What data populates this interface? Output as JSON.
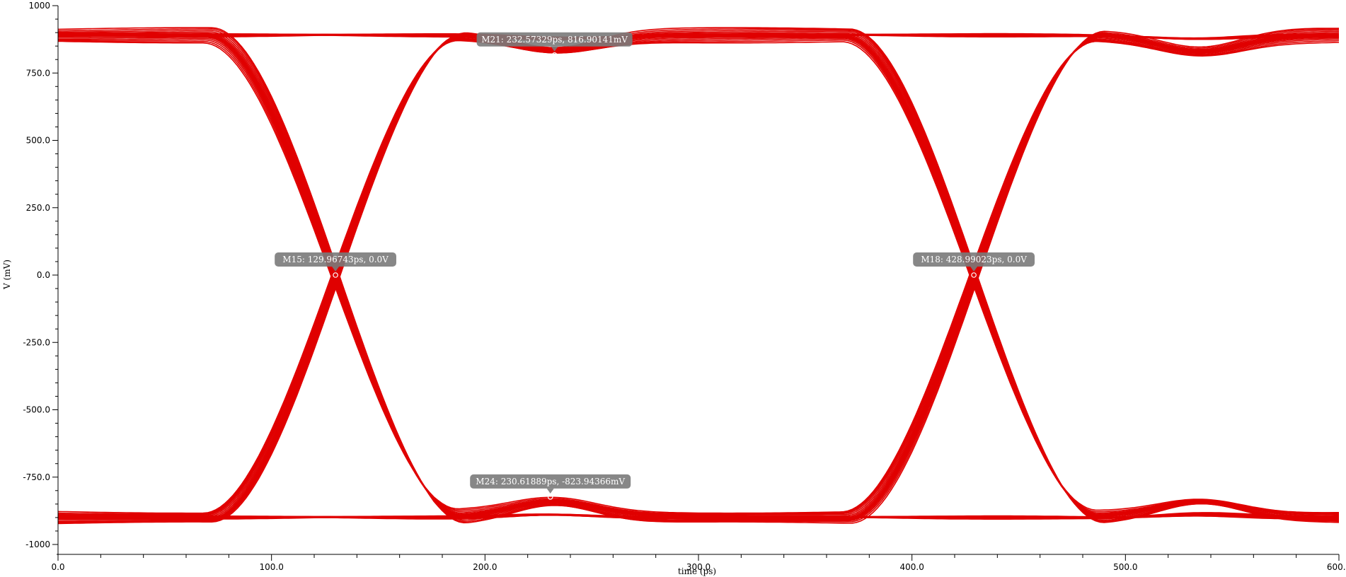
{
  "chart_data": {
    "type": "line",
    "title": "",
    "xlabel": "time (ps)",
    "ylabel": "V (mV)",
    "xlim": [
      0,
      600
    ],
    "ylim": [
      -1000,
      1000
    ],
    "x_ticks": [
      0,
      100,
      200,
      300,
      400,
      500,
      600
    ],
    "x_tick_labels": [
      "0.0",
      "100.0",
      "200.0",
      "300.0",
      "400.0",
      "500.0",
      "600.0"
    ],
    "y_ticks": [
      1000,
      750,
      500,
      250,
      0,
      -250,
      -500,
      -750,
      -1000
    ],
    "y_tick_labels": [
      "1000",
      "750.0",
      "500.0",
      "250.0",
      "0.0",
      "-250.0",
      "-500.0",
      "-750.0",
      "-1000"
    ],
    "grid": false,
    "trace_color": "#e00000",
    "eye": {
      "high_level_mV": 890,
      "low_level_mV": -900,
      "crossings_ps": [
        129.96743,
        428.99023
      ],
      "traces": 14
    },
    "markers": [
      {
        "label": "M15: 129.96743ps, 0.0V",
        "x": 129.96743,
        "y": 0
      },
      {
        "label": "M21: 232.57329ps, 816.90141mV",
        "x": 232.57329,
        "y": 816.90141
      },
      {
        "label": "M18: 428.99023ps, 0.0V",
        "x": 428.99023,
        "y": 0
      },
      {
        "label": "M24: 230.61889ps, -823.94366mV",
        "x": 230.61889,
        "y": -823.94366
      }
    ]
  },
  "colors": {
    "marker_bg": "#7a7a7a",
    "marker_text": "#ffffff"
  }
}
